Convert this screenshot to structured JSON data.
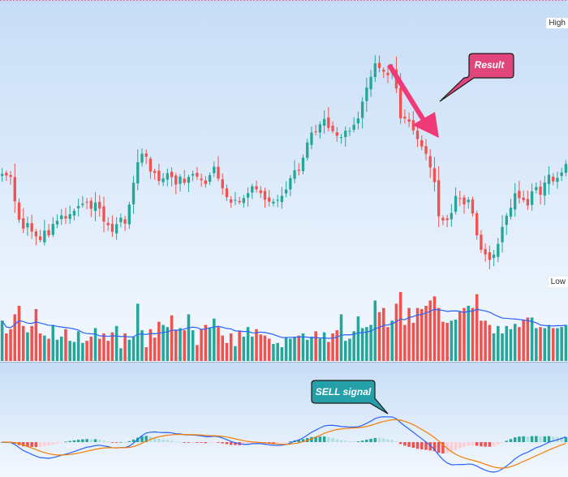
{
  "chart_data": {
    "type": "candlestick",
    "title": "",
    "price_axis_labels": {
      "high": "High",
      "low": "Low"
    },
    "colors": {
      "up": "#26a69a",
      "down": "#ef5350",
      "sma": "#2962ff",
      "macd": "#2962ff",
      "signal": "#f57c00",
      "result_callout": "#e0457b",
      "sell_callout": "#26a0a8"
    },
    "annotations": {
      "result": "Result",
      "sell": "SELL signal"
    },
    "grid": false,
    "legend": "none",
    "price_close": [
      142.0,
      141.2,
      140.5,
      128.0,
      118.5,
      114.0,
      116.8,
      112.5,
      110.0,
      108.2,
      113.0,
      110.6,
      116.4,
      118.0,
      120.8,
      119.2,
      121.4,
      123.2,
      125.6,
      126.8,
      127.4,
      124.2,
      127.4,
      124.3,
      117.6,
      115.8,
      112.4,
      116.3,
      119.6,
      116.6,
      126.3,
      137.5,
      148.0,
      152.3,
      150.8,
      143.2,
      142.5,
      138.4,
      139.7,
      142.4,
      140.3,
      136.6,
      140.6,
      137.5,
      140.4,
      142.0,
      140.6,
      138.8,
      136.8,
      141.4,
      145.7,
      139.6,
      134.6,
      130.1,
      127.3,
      128.7,
      127.5,
      129.6,
      132.2,
      135.7,
      134.1,
      132.2,
      128.8,
      127.8,
      127.8,
      128.7,
      130.8,
      134.0,
      139.8,
      143.9,
      143.6,
      150.3,
      158.1,
      163.2,
      163.6,
      167.4,
      170.1,
      165.5,
      163.9,
      161.5,
      160.8,
      164.1,
      164.1,
      167.2,
      170.4,
      179.0,
      186.2,
      191.7,
      198.6,
      196.2,
      194.3,
      192.5,
      195.2,
      185.7,
      170.5,
      170.3,
      168.7,
      164.3,
      159.8,
      156.0,
      152.3,
      145.3,
      137.8,
      120.3,
      118.2,
      118.4,
      122.0,
      130.7,
      129.5,
      126.4,
      128.8,
      121.8,
      110.6,
      103.2,
      100.8,
      98.0,
      100.7,
      106.2,
      114.9,
      120.6,
      124.7,
      132.1,
      129.6,
      128.6,
      125.9,
      133.1,
      135.3,
      131.4,
      137.6,
      141.6,
      138.2,
      140.0,
      142.8,
      147.1
    ],
    "volume": [
      38,
      26,
      30,
      44,
      52,
      33,
      27,
      33,
      49,
      26,
      24,
      21,
      34,
      20,
      23,
      30,
      19,
      18,
      28,
      17,
      19,
      23,
      31,
      21,
      26,
      19,
      27,
      33,
      12,
      26,
      20,
      23,
      54,
      29,
      13,
      30,
      22,
      37,
      34,
      32,
      43,
      29,
      31,
      29,
      44,
      29,
      15,
      30,
      34,
      31,
      40,
      32,
      24,
      17,
      26,
      14,
      28,
      23,
      32,
      23,
      30,
      25,
      24,
      21,
      16,
      17,
      13,
      22,
      21,
      23,
      24,
      26,
      20,
      23,
      28,
      21,
      27,
      18,
      26,
      29,
      44,
      19,
      21,
      28,
      42,
      31,
      32,
      34,
      57,
      46,
      50,
      32,
      38,
      54,
      65,
      34,
      50,
      36,
      50,
      49,
      52,
      57,
      61,
      50,
      37,
      36,
      38,
      39,
      47,
      50,
      52,
      50,
      63,
      38,
      38,
      34,
      26,
      33,
      26,
      33,
      30,
      35,
      32,
      39,
      41,
      41,
      31,
      32,
      31,
      34,
      31,
      31,
      32,
      34,
      32
    ]
  }
}
